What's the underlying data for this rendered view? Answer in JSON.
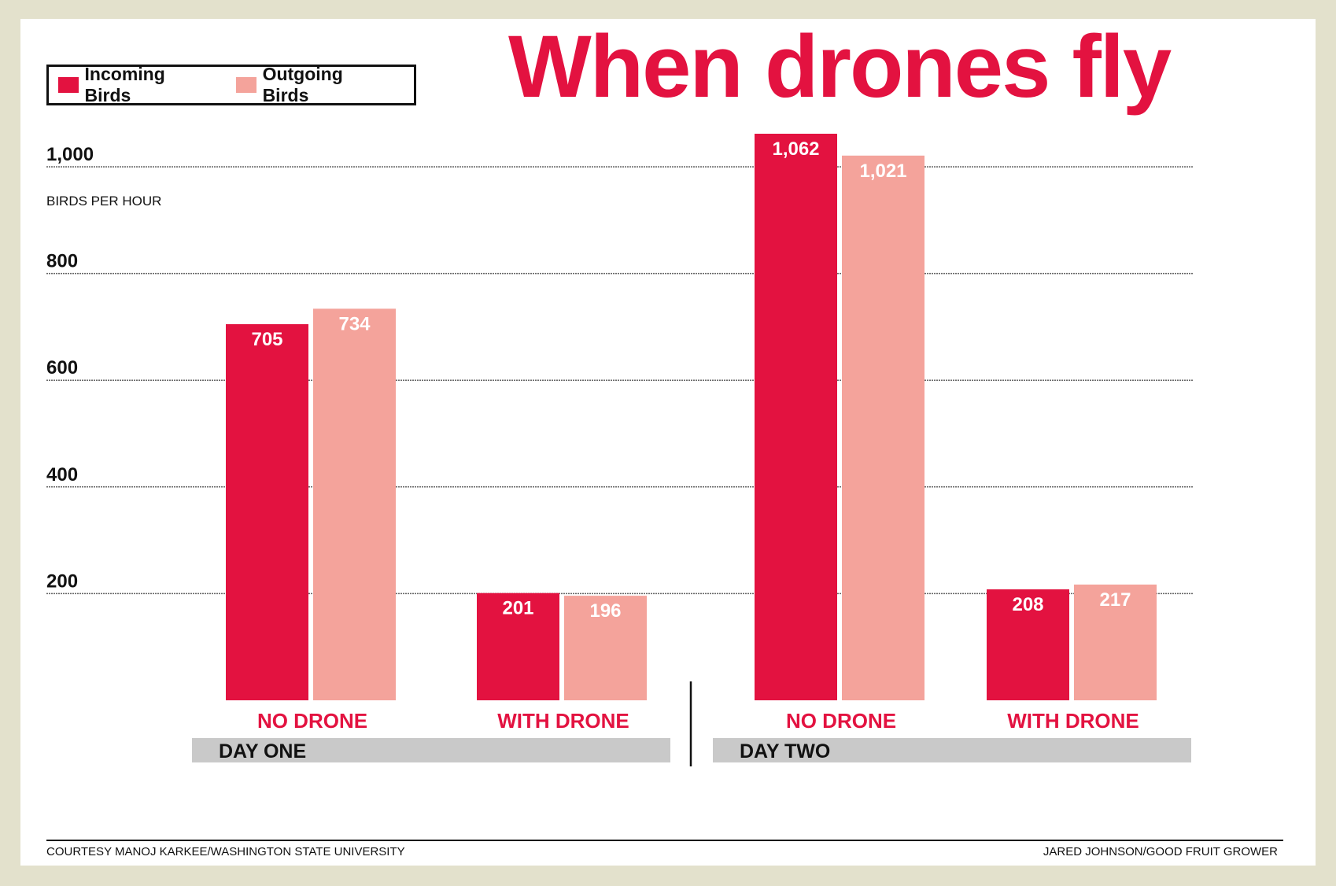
{
  "chart_data": {
    "type": "bar",
    "title": "When drones fly",
    "ylabel": "BIRDS PER HOUR",
    "ylim": [
      0,
      1100
    ],
    "yticks": [
      200,
      400,
      600,
      800,
      1000
    ],
    "ytick_labels": [
      "200",
      "400",
      "600",
      "800",
      "1,000"
    ],
    "grid": true,
    "legend_position": "top-left",
    "categories": [
      "NO DRONE",
      "WITH DRONE",
      "NO DRONE",
      "WITH DRONE"
    ],
    "groups": [
      {
        "label": "DAY ONE",
        "categories": [
          "NO DRONE",
          "WITH DRONE"
        ]
      },
      {
        "label": "DAY TWO",
        "categories": [
          "NO DRONE",
          "WITH DRONE"
        ]
      }
    ],
    "series": [
      {
        "name": "Incoming Birds",
        "color": "#e31240",
        "values": [
          705,
          201,
          1062,
          208
        ],
        "labels": [
          "705",
          "201",
          "1,062",
          "208"
        ]
      },
      {
        "name": "Outgoing Birds",
        "color": "#f4a39b",
        "values": [
          734,
          196,
          1021,
          217
        ],
        "labels": [
          "734",
          "196",
          "1,021",
          "217"
        ]
      }
    ]
  },
  "credits": {
    "left": "COURTESY MANOJ KARKEE/WASHINGTON STATE UNIVERSITY",
    "right": "JARED JOHNSON/GOOD FRUIT GROWER"
  },
  "colors": {
    "category_label": "#e31240",
    "group_band": "#c9c9c9",
    "frame": "#e3e1cc"
  }
}
